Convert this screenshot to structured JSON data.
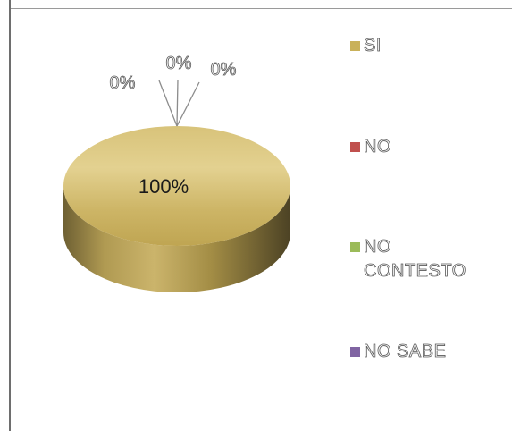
{
  "chart_data": {
    "type": "pie",
    "style": "3d",
    "categories": [
      "SI",
      "NO",
      "NO CONTESTO",
      "NO SABE"
    ],
    "values": [
      100,
      0,
      0,
      0
    ],
    "data_labels": [
      "100%",
      "0%",
      "0%",
      "0%"
    ],
    "legend_labels": [
      "SI",
      "NO",
      "NO\nCONTESTO",
      "NO SABE"
    ],
    "colors": [
      "#c9b15a",
      "#c0504d",
      "#9bbb59",
      "#8064a2"
    ],
    "legend_position": "right",
    "title": ""
  }
}
